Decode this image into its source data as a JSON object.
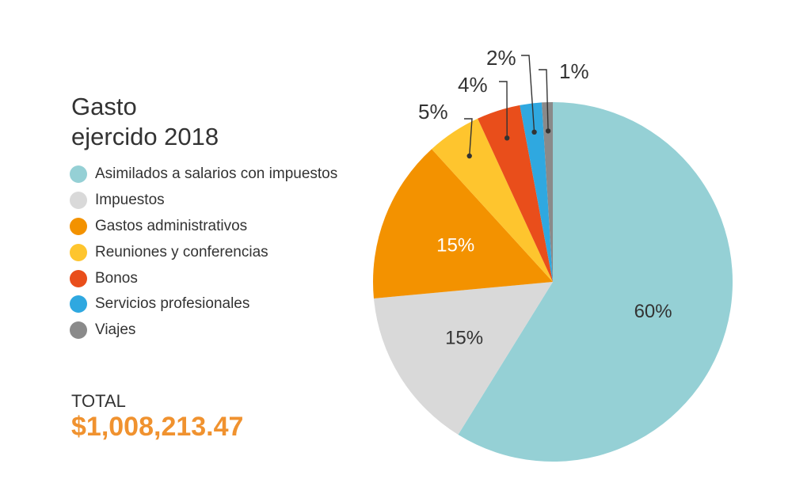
{
  "title_line1": "Gasto",
  "title_line2": "ejercido 2018",
  "total": {
    "label": "TOTAL",
    "value": "$1,008,213.47"
  },
  "chart_data": {
    "type": "pie",
    "title": "Gasto ejercido 2018",
    "legend_position": "left",
    "slices": [
      {
        "name": "Asimilados a salarios con impuestos",
        "value": 60,
        "label": "60%",
        "color": "#95d0d5",
        "label_color": "#333333",
        "callout": false
      },
      {
        "name": "Impuestos",
        "value": 15,
        "label": "15%",
        "color": "#d9d9d9",
        "label_color": "#333333",
        "callout": false
      },
      {
        "name": "Gastos administrativos",
        "value": 15,
        "label": "15%",
        "color": "#f39200",
        "label_color": "#ffffff",
        "callout": false
      },
      {
        "name": "Reuniones y conferencias",
        "value": 5,
        "label": "5%",
        "color": "#fec52e",
        "label_color": "#333333",
        "callout": true
      },
      {
        "name": "Bonos",
        "value": 4,
        "label": "4%",
        "color": "#e94e1b",
        "label_color": "#333333",
        "callout": true
      },
      {
        "name": "Servicios profesionales",
        "value": 2,
        "label": "2%",
        "color": "#2fa8e0",
        "label_color": "#333333",
        "callout": true
      },
      {
        "name": "Viajes",
        "value": 1,
        "label": "1%",
        "color": "#8a8a8a",
        "label_color": "#333333",
        "callout": true
      }
    ]
  }
}
